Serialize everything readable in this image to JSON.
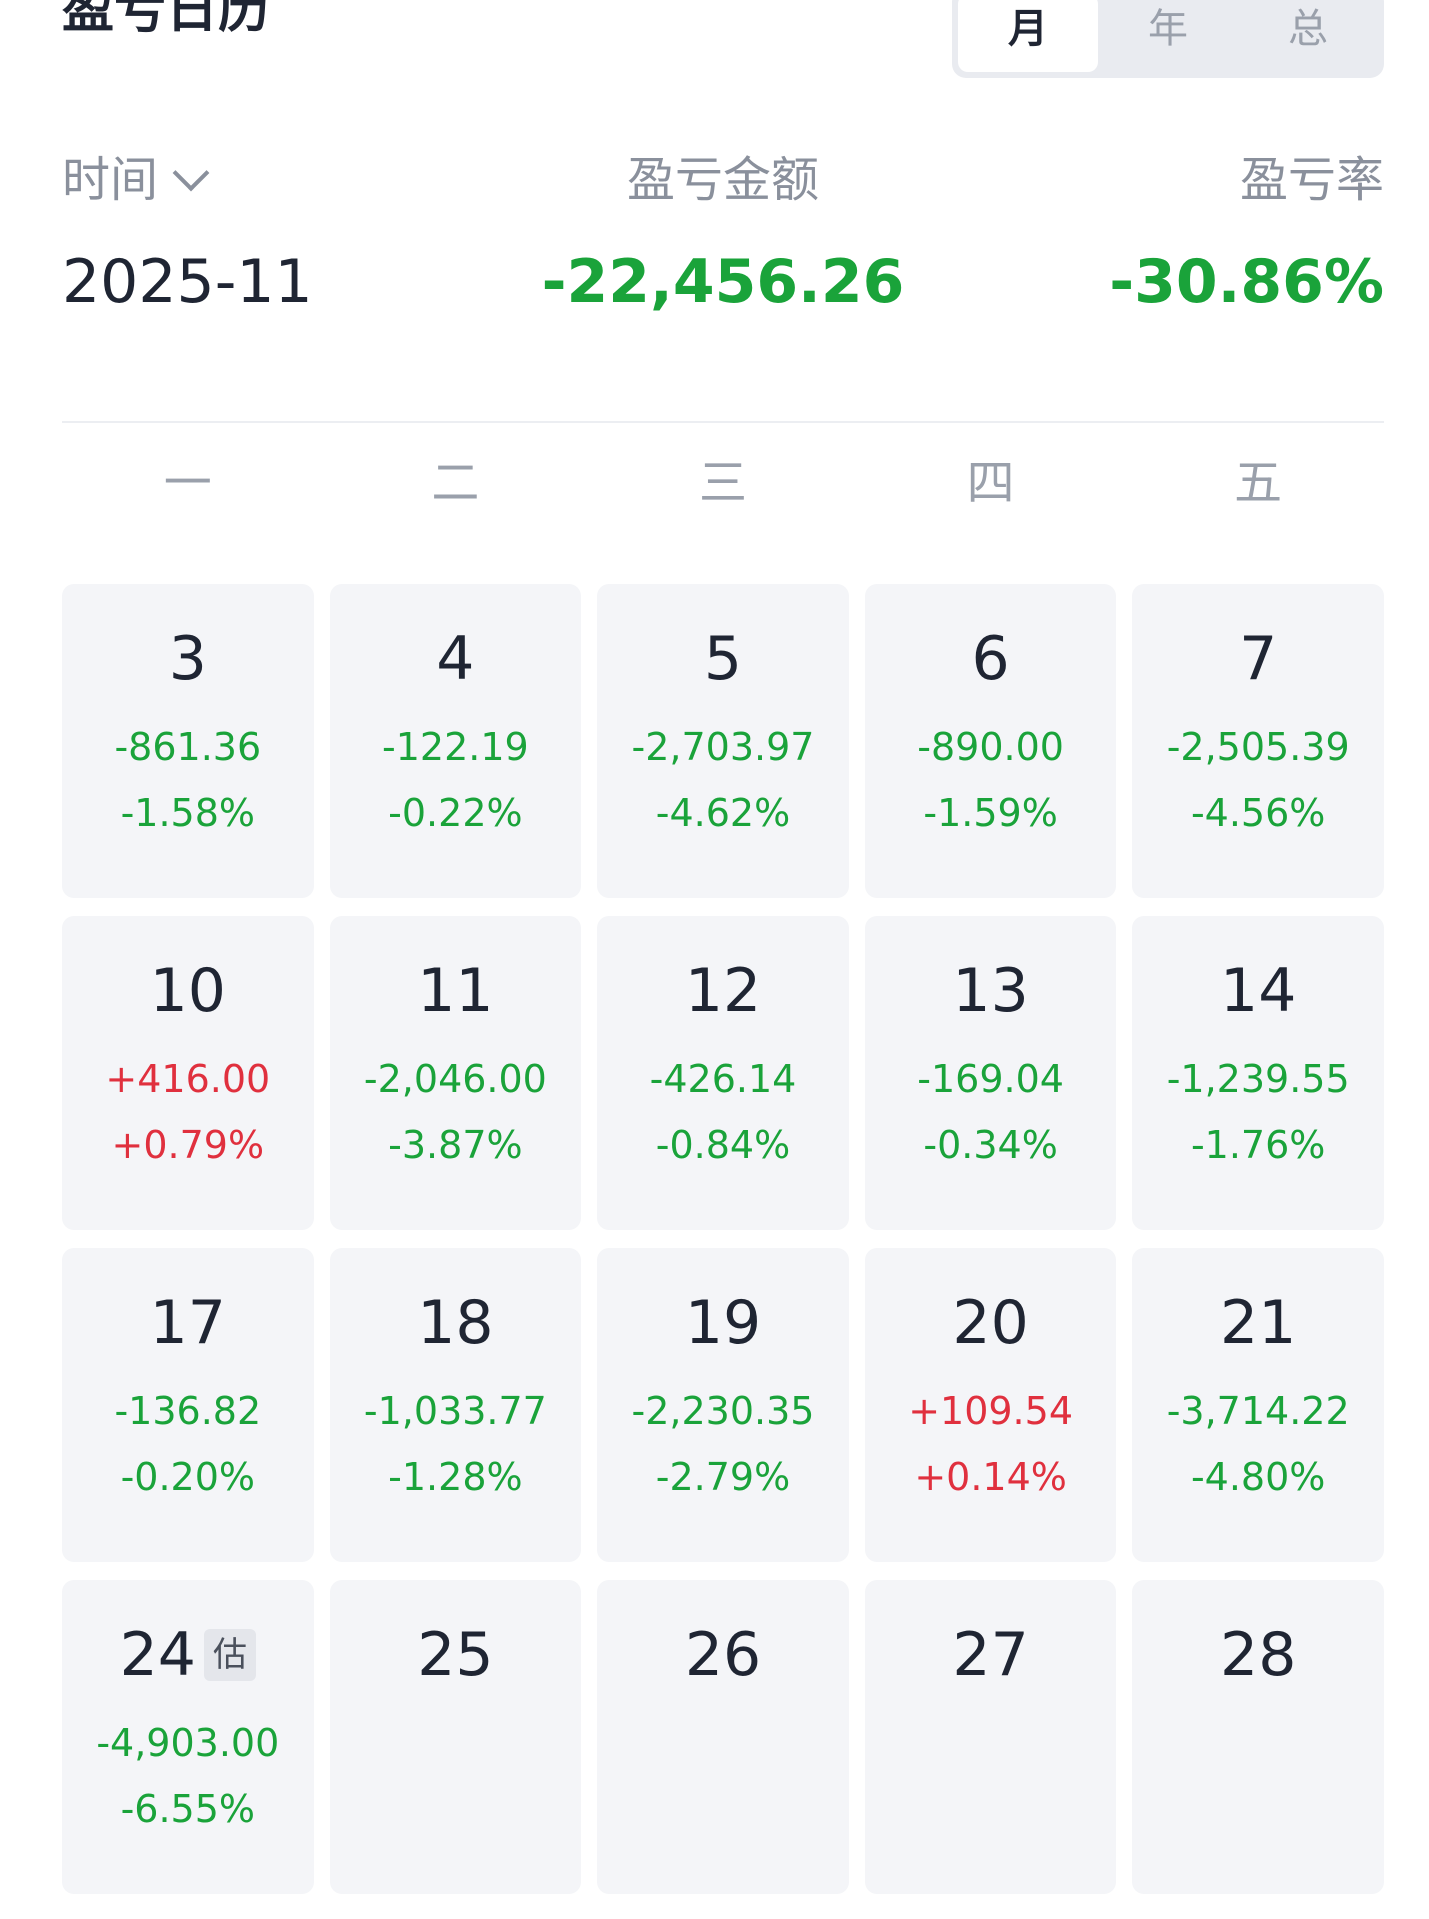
{
  "header": {
    "title": "盈亏日历",
    "period_options": [
      "月",
      "年",
      "总"
    ],
    "active_period": "月"
  },
  "summary": {
    "time_label": "时间",
    "amount_label": "盈亏金额",
    "rate_label": "盈亏率",
    "time_value": "2025-11",
    "amount_value": "-22,456.26",
    "rate_value": "-30.86%"
  },
  "weekdays": [
    "一",
    "二",
    "三",
    "四",
    "五"
  ],
  "colors": {
    "loss": "#1aa33a",
    "profit": "#e0303e",
    "cell_bg": "#f4f5f8"
  },
  "estimate_tag": "估",
  "days": [
    {
      "day": "3",
      "pnl": "-861.36",
      "rate": "-1.58%",
      "sign": "neg"
    },
    {
      "day": "4",
      "pnl": "-122.19",
      "rate": "-0.22%",
      "sign": "neg"
    },
    {
      "day": "5",
      "pnl": "-2,703.97",
      "rate": "-4.62%",
      "sign": "neg"
    },
    {
      "day": "6",
      "pnl": "-890.00",
      "rate": "-1.59%",
      "sign": "neg"
    },
    {
      "day": "7",
      "pnl": "-2,505.39",
      "rate": "-4.56%",
      "sign": "neg"
    },
    {
      "day": "10",
      "pnl": "+416.00",
      "rate": "+0.79%",
      "sign": "pos"
    },
    {
      "day": "11",
      "pnl": "-2,046.00",
      "rate": "-3.87%",
      "sign": "neg"
    },
    {
      "day": "12",
      "pnl": "-426.14",
      "rate": "-0.84%",
      "sign": "neg"
    },
    {
      "day": "13",
      "pnl": "-169.04",
      "rate": "-0.34%",
      "sign": "neg"
    },
    {
      "day": "14",
      "pnl": "-1,239.55",
      "rate": "-1.76%",
      "sign": "neg"
    },
    {
      "day": "17",
      "pnl": "-136.82",
      "rate": "-0.20%",
      "sign": "neg"
    },
    {
      "day": "18",
      "pnl": "-1,033.77",
      "rate": "-1.28%",
      "sign": "neg"
    },
    {
      "day": "19",
      "pnl": "-2,230.35",
      "rate": "-2.79%",
      "sign": "neg"
    },
    {
      "day": "20",
      "pnl": "+109.54",
      "rate": "+0.14%",
      "sign": "pos"
    },
    {
      "day": "21",
      "pnl": "-3,714.22",
      "rate": "-4.80%",
      "sign": "neg"
    },
    {
      "day": "24",
      "pnl": "-4,903.00",
      "rate": "-6.55%",
      "sign": "neg",
      "estimated": true
    },
    {
      "day": "25",
      "pnl": "",
      "rate": "",
      "sign": "none"
    },
    {
      "day": "26",
      "pnl": "",
      "rate": "",
      "sign": "none"
    },
    {
      "day": "27",
      "pnl": "",
      "rate": "",
      "sign": "none"
    },
    {
      "day": "28",
      "pnl": "",
      "rate": "",
      "sign": "none"
    }
  ]
}
